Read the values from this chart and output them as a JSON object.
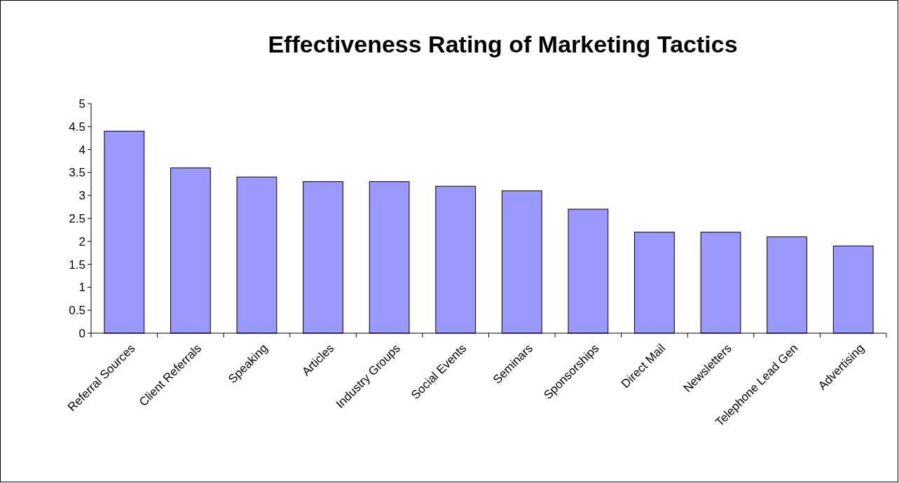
{
  "chart_data": {
    "type": "bar",
    "title": "Effectiveness Rating of Marketing Tactics",
    "categories": [
      "Referral Sources",
      "Client Referrals",
      "Speaking",
      "Articles",
      "Industry Groups",
      "Social Events",
      "Seminars",
      "Sponsorships",
      "Direct Mail",
      "Newsletters",
      "Telephone Lead Gen",
      "Advertising"
    ],
    "values": [
      4.4,
      3.6,
      3.4,
      3.3,
      3.3,
      3.2,
      3.1,
      2.7,
      2.2,
      2.2,
      2.1,
      1.9
    ],
    "color": "#9999ff",
    "ylim": [
      0,
      5
    ],
    "yticks": [
      0,
      0.5,
      1,
      1.5,
      2,
      2.5,
      3,
      3.5,
      4,
      4.5,
      5
    ],
    "grid": false
  }
}
